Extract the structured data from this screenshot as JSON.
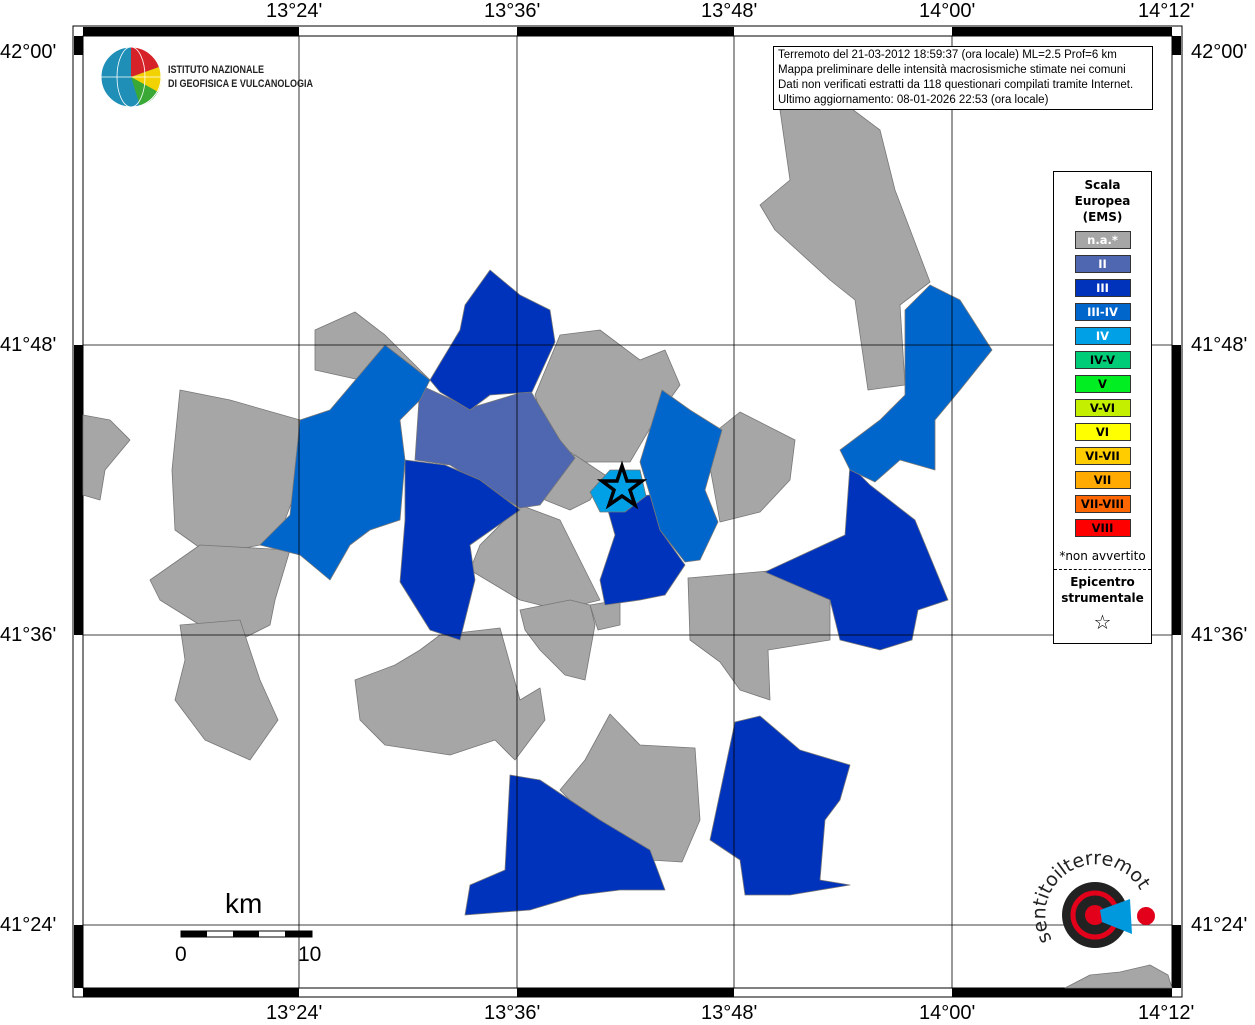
{
  "map": {
    "longitude_labels": [
      "13°24'",
      "13°36'",
      "13°48'",
      "14°00'",
      "14°12'"
    ],
    "latitude_labels": [
      "42°00'",
      "41°48'",
      "41°36'",
      "41°24'"
    ],
    "epicenter_icon": "star-icon"
  },
  "info_box": {
    "line1": "Terremoto del 21-03-2012 18:59:37 (ora locale) ML=2.5 Prof=6 km",
    "line2": "Mappa preliminare delle intensità macrosismiche stimate nei comuni",
    "line3": "Dati non verificati estratti da 118 questionari compilati tramite Internet.",
    "line4": "Ultimo aggiornamento: 08-01-2026 22:53 (ora locale)"
  },
  "logo_ingv": {
    "line1": "ISTITUTO NAZIONALE",
    "line2": "DI GEOFISICA E VULCANOLOGIA"
  },
  "logo_hsit": "www.haisentitoilterremoto.it",
  "legend": {
    "title": [
      "Scala",
      "Europea",
      "(EMS)"
    ],
    "items": [
      {
        "label": "n.a.*",
        "color": "#a6a6a6",
        "text_color": "#ffffff"
      },
      {
        "label": "II",
        "color": "#4f66b0",
        "text_color": "#ffffff"
      },
      {
        "label": "III",
        "color": "#0033bb",
        "text_color": "#ffffff"
      },
      {
        "label": "III-IV",
        "color": "#0066cc",
        "text_color": "#ffffff"
      },
      {
        "label": "IV",
        "color": "#00a0e6",
        "text_color": "#ffffff"
      },
      {
        "label": "IV-V",
        "color": "#00cc77",
        "text_color": "#000000"
      },
      {
        "label": "V",
        "color": "#00ee22",
        "text_color": "#000000"
      },
      {
        "label": "V-VI",
        "color": "#c4f000",
        "text_color": "#000000"
      },
      {
        "label": "VI",
        "color": "#ffff00",
        "text_color": "#000000"
      },
      {
        "label": "VI-VII",
        "color": "#ffcc00",
        "text_color": "#000000"
      },
      {
        "label": "VII",
        "color": "#ffaa00",
        "text_color": "#000000"
      },
      {
        "label": "VII-VIII",
        "color": "#ff6600",
        "text_color": "#000000"
      },
      {
        "label": "VIII",
        "color": "#ff0000",
        "text_color": "#000000"
      }
    ],
    "note": "*non avvertito",
    "epicenter_label": [
      "Epicentro",
      "strumentale"
    ],
    "epicenter_symbol": "☆"
  },
  "scale_bar": {
    "unit": "km",
    "start": "0",
    "end": "10"
  }
}
